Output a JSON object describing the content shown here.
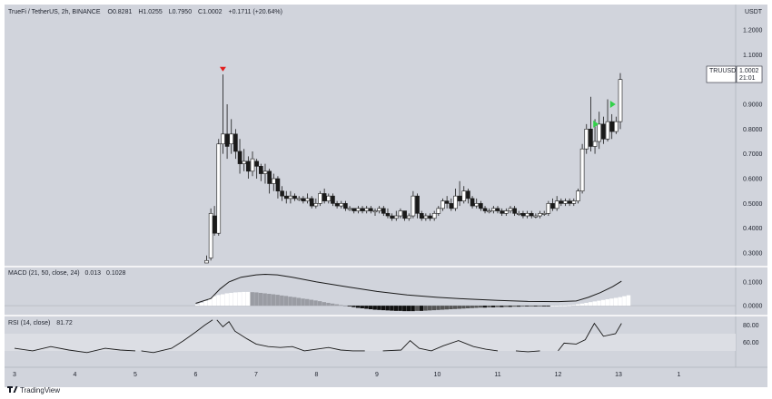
{
  "header": {
    "symbol": "TrueFi / TetherUS, 2h, BINANCE",
    "o": "0.8281",
    "h": "1.0255",
    "l": "0.7950",
    "c": "1.0002",
    "change": "+0.1711 (+20.64%)",
    "currency": "USDT"
  },
  "price_tag": {
    "symbol": "TRUUSDT",
    "price": "1.0002",
    "countdown": "21:01"
  },
  "macd_panel": {
    "label": "MACD (21, 50, close, 24)",
    "value1": "0.013",
    "value2": "0.1028"
  },
  "rsi_panel": {
    "label": "RSI (14, close)",
    "value": "81.72"
  },
  "footer": {
    "brand": "TradingView",
    "logo_icon": "tradingview-logo-icon"
  },
  "colors": {
    "background": "#d1d4dc",
    "band": "#dcdee4",
    "up": "#ffffff",
    "down": "#1a1a1a",
    "arrow_down": "#e31b1b",
    "arrow_up": "#33d14a",
    "histogram_grey": "#9a9ca3"
  },
  "chart_data": [
    {
      "type": "candlestick",
      "title": "TrueFi / TetherUS, 2h, BINANCE",
      "x_ticks": [
        "3",
        "4",
        "5",
        "6",
        "7",
        "8",
        "9",
        "10",
        "11",
        "12",
        "13",
        "1"
      ],
      "y_ticks": [
        "1.2000",
        "1.1000",
        "1.0000",
        "0.9000",
        "0.8000",
        "0.7000",
        "0.6000",
        "0.5000",
        "0.4000",
        "0.3000"
      ],
      "ylim": [
        0.26,
        1.24
      ],
      "candles": [
        [
          5.18,
          0.24,
          0.27,
          0.22,
          0.29
        ],
        [
          5.25,
          0.28,
          0.46,
          0.27,
          0.48
        ],
        [
          5.31,
          0.45,
          0.38,
          0.37,
          0.49
        ],
        [
          5.38,
          0.38,
          0.74,
          0.37,
          0.76
        ],
        [
          5.45,
          0.74,
          0.78,
          0.7,
          1.02
        ],
        [
          5.52,
          0.78,
          0.73,
          0.68,
          0.9
        ],
        [
          5.59,
          0.74,
          0.78,
          0.7,
          0.84
        ],
        [
          5.66,
          0.78,
          0.71,
          0.68,
          0.8
        ],
        [
          5.73,
          0.71,
          0.66,
          0.62,
          0.76
        ],
        [
          5.8,
          0.66,
          0.67,
          0.63,
          0.72
        ],
        [
          5.87,
          0.67,
          0.63,
          0.6,
          0.69
        ],
        [
          5.94,
          0.63,
          0.68,
          0.61,
          0.71
        ],
        [
          6.01,
          0.67,
          0.65,
          0.6,
          0.68
        ],
        [
          6.08,
          0.65,
          0.62,
          0.59,
          0.66
        ],
        [
          6.15,
          0.62,
          0.63,
          0.58,
          0.66
        ],
        [
          6.22,
          0.63,
          0.58,
          0.54,
          0.64
        ],
        [
          6.29,
          0.58,
          0.6,
          0.55,
          0.62
        ],
        [
          6.36,
          0.6,
          0.55,
          0.52,
          0.61
        ],
        [
          6.43,
          0.55,
          0.53,
          0.51,
          0.57
        ],
        [
          6.5,
          0.53,
          0.52,
          0.5,
          0.55
        ],
        [
          6.57,
          0.52,
          0.53,
          0.5,
          0.55
        ],
        [
          6.64,
          0.53,
          0.52,
          0.51,
          0.54
        ],
        [
          6.71,
          0.52,
          0.52,
          0.51,
          0.53
        ],
        [
          6.78,
          0.52,
          0.51,
          0.5,
          0.53
        ],
        [
          6.85,
          0.51,
          0.52,
          0.5,
          0.54
        ],
        [
          6.92,
          0.52,
          0.49,
          0.48,
          0.53
        ],
        [
          6.99,
          0.49,
          0.5,
          0.48,
          0.52
        ],
        [
          7.06,
          0.5,
          0.54,
          0.49,
          0.55
        ],
        [
          7.13,
          0.54,
          0.51,
          0.5,
          0.56
        ],
        [
          7.2,
          0.51,
          0.53,
          0.5,
          0.54
        ],
        [
          7.27,
          0.53,
          0.5,
          0.49,
          0.54
        ],
        [
          7.34,
          0.5,
          0.49,
          0.48,
          0.51
        ],
        [
          7.41,
          0.49,
          0.5,
          0.48,
          0.51
        ],
        [
          7.48,
          0.5,
          0.48,
          0.47,
          0.51
        ],
        [
          7.55,
          0.48,
          0.48,
          0.47,
          0.49
        ],
        [
          7.62,
          0.48,
          0.47,
          0.46,
          0.48
        ],
        [
          7.69,
          0.47,
          0.48,
          0.46,
          0.49
        ],
        [
          7.76,
          0.48,
          0.47,
          0.46,
          0.49
        ],
        [
          7.83,
          0.47,
          0.48,
          0.46,
          0.49
        ],
        [
          7.9,
          0.48,
          0.47,
          0.46,
          0.49
        ],
        [
          7.97,
          0.47,
          0.47,
          0.45,
          0.48
        ],
        [
          8.04,
          0.47,
          0.48,
          0.46,
          0.49
        ],
        [
          8.11,
          0.48,
          0.46,
          0.45,
          0.49
        ],
        [
          8.18,
          0.46,
          0.45,
          0.44,
          0.48
        ],
        [
          8.25,
          0.45,
          0.44,
          0.43,
          0.46
        ],
        [
          8.32,
          0.44,
          0.45,
          0.43,
          0.47
        ],
        [
          8.39,
          0.45,
          0.47,
          0.44,
          0.48
        ],
        [
          8.46,
          0.47,
          0.44,
          0.43,
          0.47
        ],
        [
          8.53,
          0.44,
          0.45,
          0.43,
          0.46
        ],
        [
          8.6,
          0.45,
          0.53,
          0.44,
          0.55
        ],
        [
          8.67,
          0.53,
          0.46,
          0.44,
          0.54
        ],
        [
          8.74,
          0.46,
          0.44,
          0.43,
          0.47
        ],
        [
          8.81,
          0.44,
          0.45,
          0.43,
          0.46
        ],
        [
          8.88,
          0.45,
          0.44,
          0.43,
          0.46
        ],
        [
          8.95,
          0.44,
          0.46,
          0.43,
          0.47
        ],
        [
          9.02,
          0.46,
          0.48,
          0.45,
          0.49
        ],
        [
          9.09,
          0.48,
          0.51,
          0.47,
          0.52
        ],
        [
          9.16,
          0.51,
          0.5,
          0.48,
          0.53
        ],
        [
          9.23,
          0.5,
          0.48,
          0.47,
          0.52
        ],
        [
          9.3,
          0.48,
          0.53,
          0.47,
          0.56
        ],
        [
          9.37,
          0.53,
          0.51,
          0.49,
          0.59
        ],
        [
          9.44,
          0.51,
          0.55,
          0.5,
          0.57
        ],
        [
          9.51,
          0.55,
          0.52,
          0.5,
          0.56
        ],
        [
          9.58,
          0.52,
          0.49,
          0.48,
          0.53
        ],
        [
          9.65,
          0.49,
          0.5,
          0.48,
          0.52
        ],
        [
          9.72,
          0.5,
          0.48,
          0.47,
          0.51
        ],
        [
          9.79,
          0.48,
          0.47,
          0.46,
          0.49
        ],
        [
          9.86,
          0.47,
          0.47,
          0.46,
          0.48
        ],
        [
          9.93,
          0.47,
          0.48,
          0.46,
          0.49
        ],
        [
          10.0,
          0.48,
          0.47,
          0.46,
          0.49
        ],
        [
          10.07,
          0.47,
          0.46,
          0.45,
          0.48
        ],
        [
          10.14,
          0.46,
          0.47,
          0.45,
          0.48
        ],
        [
          10.21,
          0.47,
          0.48,
          0.46,
          0.49
        ],
        [
          10.28,
          0.48,
          0.46,
          0.45,
          0.49
        ],
        [
          10.35,
          0.46,
          0.46,
          0.45,
          0.47
        ],
        [
          10.42,
          0.46,
          0.45,
          0.44,
          0.47
        ],
        [
          10.49,
          0.45,
          0.46,
          0.44,
          0.47
        ],
        [
          10.56,
          0.46,
          0.45,
          0.44,
          0.47
        ],
        [
          10.63,
          0.45,
          0.45,
          0.44,
          0.46
        ],
        [
          10.7,
          0.45,
          0.46,
          0.44,
          0.47
        ],
        [
          10.77,
          0.46,
          0.46,
          0.45,
          0.47
        ],
        [
          10.84,
          0.46,
          0.5,
          0.45,
          0.51
        ],
        [
          10.91,
          0.5,
          0.48,
          0.47,
          0.52
        ],
        [
          10.98,
          0.48,
          0.51,
          0.47,
          0.53
        ],
        [
          11.05,
          0.51,
          0.5,
          0.49,
          0.52
        ],
        [
          11.12,
          0.5,
          0.51,
          0.49,
          0.52
        ],
        [
          11.19,
          0.51,
          0.5,
          0.49,
          0.52
        ],
        [
          11.26,
          0.5,
          0.51,
          0.49,
          0.52
        ],
        [
          11.33,
          0.51,
          0.55,
          0.5,
          0.56
        ],
        [
          11.4,
          0.55,
          0.72,
          0.54,
          0.74
        ],
        [
          11.47,
          0.72,
          0.8,
          0.7,
          0.82
        ],
        [
          11.54,
          0.8,
          0.73,
          0.71,
          0.93
        ],
        [
          11.61,
          0.73,
          0.75,
          0.7,
          0.84
        ],
        [
          11.68,
          0.75,
          0.82,
          0.72,
          0.87
        ],
        [
          11.75,
          0.82,
          0.76,
          0.74,
          0.85
        ],
        [
          11.82,
          0.76,
          0.83,
          0.75,
          0.92
        ],
        [
          11.89,
          0.83,
          0.79,
          0.76,
          0.86
        ],
        [
          11.96,
          0.79,
          0.83,
          0.78,
          0.85
        ],
        [
          12.03,
          0.83,
          1.0,
          0.8,
          1.0255
        ]
      ],
      "markers": [
        {
          "type": "sell",
          "x": 5.45,
          "y": 1.04
        },
        {
          "type": "buy",
          "x": 11.62,
          "y": 0.82
        },
        {
          "type": "buy",
          "x": 11.9,
          "y": 0.9
        }
      ]
    },
    {
      "type": "bar",
      "title": "MACD (21, 50, close, 24)",
      "y_ticks": [
        "0.1000",
        "0.0000"
      ],
      "ylim": [
        -0.034,
        0.157
      ],
      "start_x": 5.03,
      "step_x": 0.07,
      "histogram": [
        0.005,
        0.012,
        0.02,
        0.03,
        0.04,
        0.045,
        0.048,
        0.052,
        0.054,
        0.056,
        0.057,
        0.058,
        0.058,
        0.057,
        0.056,
        0.054,
        0.052,
        0.05,
        0.048,
        0.046,
        0.043,
        0.041,
        0.038,
        0.036,
        0.033,
        0.03,
        0.028,
        0.025,
        0.022,
        0.019,
        0.015,
        0.012,
        0.009,
        0.006,
        0.003,
        0.0,
        -0.003,
        -0.006,
        -0.009,
        -0.011,
        -0.013,
        -0.015,
        -0.017,
        -0.018,
        -0.019,
        -0.02,
        -0.021,
        -0.022,
        -0.022,
        -0.023,
        -0.023,
        -0.023,
        -0.022,
        -0.022,
        -0.021,
        -0.02,
        -0.019,
        -0.018,
        -0.017,
        -0.016,
        -0.015,
        -0.014,
        -0.013,
        -0.012,
        -0.011,
        -0.01,
        -0.009,
        -0.008,
        -0.008,
        -0.007,
        -0.007,
        -0.006,
        -0.006,
        -0.005,
        -0.005,
        -0.004,
        -0.004,
        -0.003,
        -0.003,
        -0.002,
        -0.002,
        -0.001,
        -0.001,
        -0.001,
        0.0,
        0.0,
        0.001,
        0.001,
        0.002,
        0.003,
        0.006,
        0.009,
        0.012,
        0.015,
        0.018,
        0.021,
        0.024,
        0.027,
        0.03,
        0.033,
        0.036,
        0.04,
        0.044
      ],
      "macd_line": [
        [
          5.0,
          0.01
        ],
        [
          5.25,
          0.03
        ],
        [
          5.4,
          0.07
        ],
        [
          5.55,
          0.1
        ],
        [
          5.75,
          0.12
        ],
        [
          6.0,
          0.13
        ],
        [
          6.15,
          0.132
        ],
        [
          6.35,
          0.13
        ],
        [
          6.6,
          0.12
        ],
        [
          7.0,
          0.1
        ],
        [
          7.5,
          0.08
        ],
        [
          8.0,
          0.06
        ],
        [
          8.5,
          0.045
        ],
        [
          9.0,
          0.035
        ],
        [
          9.5,
          0.028
        ],
        [
          10.0,
          0.022
        ],
        [
          10.5,
          0.018
        ],
        [
          11.0,
          0.017
        ],
        [
          11.3,
          0.02
        ],
        [
          11.5,
          0.035
        ],
        [
          11.7,
          0.055
        ],
        [
          11.9,
          0.08
        ],
        [
          12.05,
          0.103
        ]
      ]
    },
    {
      "type": "line",
      "title": "RSI (14, close)",
      "y_ticks": [
        "80.00",
        "60.00"
      ],
      "ylim": [
        32,
        89
      ],
      "band": [
        50,
        70
      ],
      "segments": [
        [
          [
            2.0,
            53
          ],
          [
            2.3,
            50
          ],
          [
            2.6,
            55
          ],
          [
            2.9,
            51
          ],
          [
            3.2,
            48
          ],
          [
            3.5,
            53
          ],
          [
            3.75,
            51
          ],
          [
            4.0,
            50
          ]
        ],
        [
          [
            4.1,
            50
          ],
          [
            4.3,
            48
          ],
          [
            4.6,
            53
          ],
          [
            4.8,
            62
          ],
          [
            5.0,
            72
          ],
          [
            5.15,
            80
          ],
          [
            5.28,
            86
          ]
        ],
        [
          [
            5.35,
            86
          ],
          [
            5.45,
            78
          ],
          [
            5.55,
            84
          ],
          [
            5.65,
            73
          ],
          [
            5.85,
            64
          ],
          [
            6.0,
            58
          ],
          [
            6.2,
            55
          ],
          [
            6.4,
            54
          ],
          [
            6.6,
            55
          ],
          [
            6.8,
            50
          ],
          [
            7.0,
            52
          ],
          [
            7.2,
            54
          ],
          [
            7.4,
            51
          ],
          [
            7.6,
            50
          ],
          [
            7.8,
            50
          ]
        ],
        [
          [
            8.1,
            50
          ],
          [
            8.4,
            51
          ],
          [
            8.55,
            62
          ],
          [
            8.7,
            53
          ],
          [
            8.9,
            50
          ],
          [
            9.1,
            56
          ],
          [
            9.35,
            62
          ],
          [
            9.6,
            55
          ],
          [
            9.8,
            52
          ],
          [
            10.0,
            50
          ]
        ],
        [
          [
            10.3,
            50
          ],
          [
            10.5,
            49
          ],
          [
            10.7,
            50
          ]
        ],
        [
          [
            11.0,
            50
          ],
          [
            11.1,
            59
          ],
          [
            11.3,
            58
          ],
          [
            11.45,
            63
          ],
          [
            11.6,
            82
          ],
          [
            11.75,
            67
          ],
          [
            11.95,
            70
          ],
          [
            12.05,
            82
          ]
        ]
      ]
    }
  ]
}
